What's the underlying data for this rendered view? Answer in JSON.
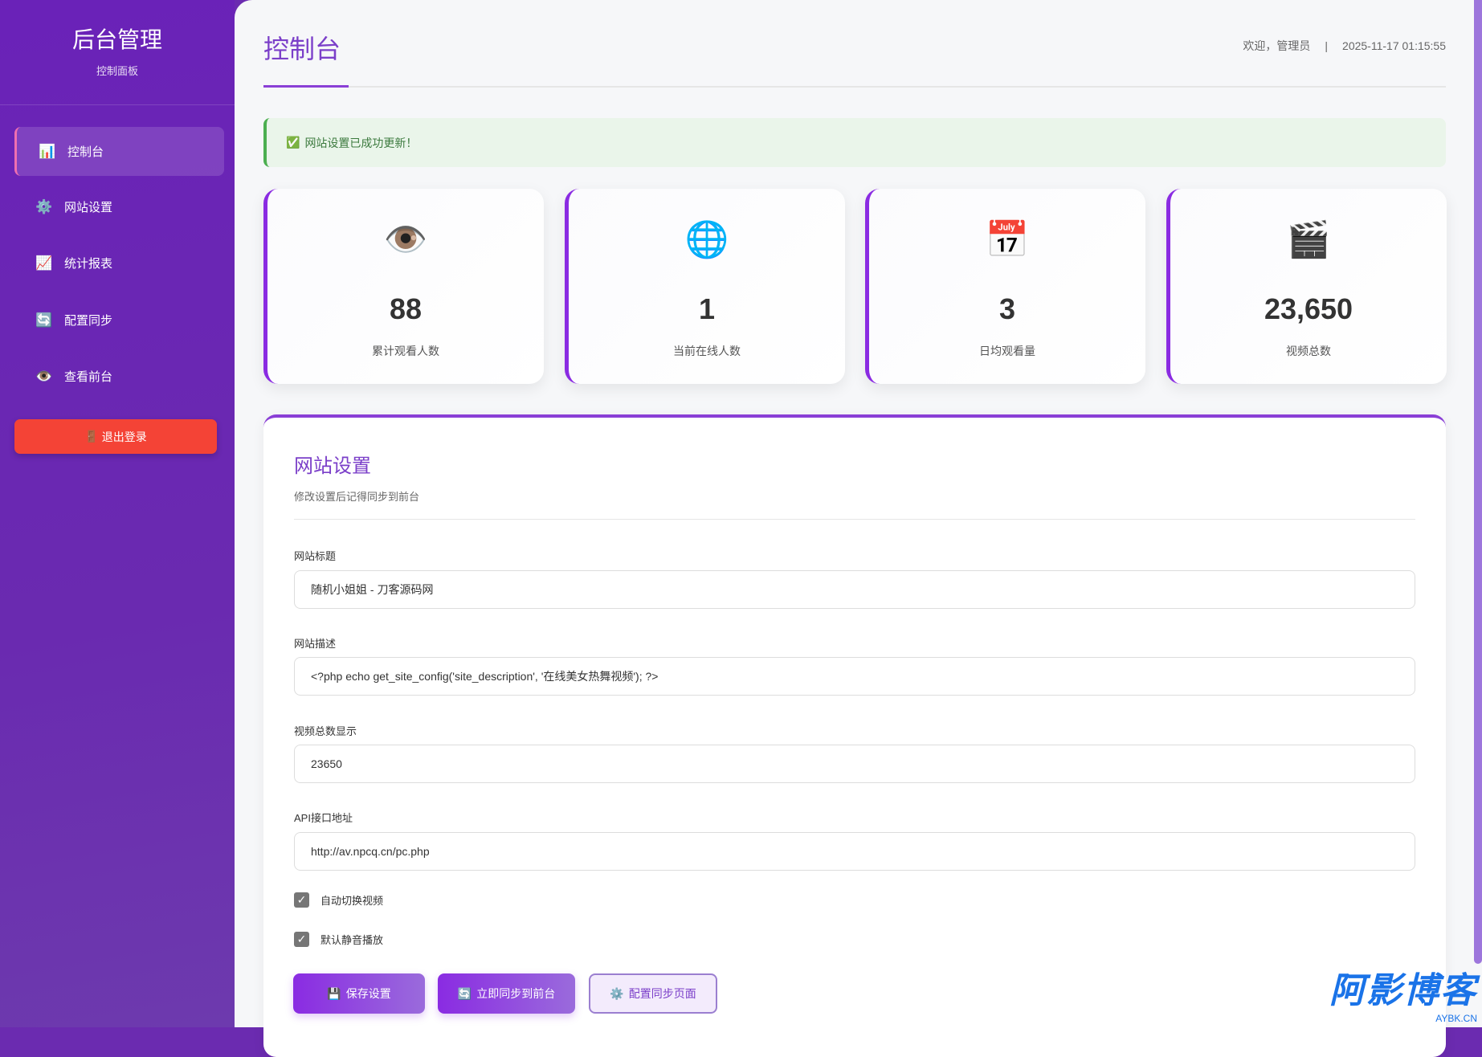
{
  "sidebar": {
    "title": "后台管理",
    "subtitle": "控制面板",
    "items": [
      {
        "icon": "📊",
        "label": "控制台"
      },
      {
        "icon": "⚙️",
        "label": "网站设置"
      },
      {
        "icon": "📈",
        "label": "统计报表"
      },
      {
        "icon": "🔄",
        "label": "配置同步"
      },
      {
        "icon": "👁️",
        "label": "查看前台"
      }
    ],
    "logout": {
      "icon": "🚪",
      "label": "退出登录"
    }
  },
  "header": {
    "title": "控制台",
    "welcome": "欢迎，管理员",
    "separator": "|",
    "datetime": "2025-11-17 01:15:55"
  },
  "alert": {
    "icon": "✅",
    "text": "网站设置已成功更新！"
  },
  "stats": [
    {
      "icon": "👁️",
      "value": "88",
      "label": "累计观看人数"
    },
    {
      "icon": "🌐",
      "value": "1",
      "label": "当前在线人数"
    },
    {
      "icon": "📅",
      "value": "3",
      "label": "日均观看量"
    },
    {
      "icon": "🎬",
      "value": "23,650",
      "label": "视频总数"
    }
  ],
  "settings": {
    "title": "网站设置",
    "subtitle": "修改设置后记得同步到前台",
    "fields": [
      {
        "label": "网站标题",
        "value": "随机小姐姐 - 刀客源码网"
      },
      {
        "label": "网站描述",
        "value": "<?php echo get_site_config('site_description', '在线美女热舞视频'); ?>"
      },
      {
        "label": "视频总数显示",
        "value": "23650"
      },
      {
        "label": "API接口地址",
        "value": "http://av.npcq.cn/pc.php"
      }
    ],
    "checkboxes": [
      {
        "label": "自动切换视频",
        "checked": true
      },
      {
        "label": "默认静音播放",
        "checked": true
      }
    ],
    "buttons": [
      {
        "icon": "💾",
        "label": "保存设置"
      },
      {
        "icon": "🔄",
        "label": "立即同步到前台"
      },
      {
        "icon": "⚙️",
        "label": "配置同步页面"
      }
    ]
  },
  "watermark": {
    "text": "阿影博客",
    "sub": "AYBK.CN"
  },
  "colors": {
    "accent": "#8a2be2",
    "sidebar": "#6a22b8",
    "danger": "#f44336",
    "success": "#4caf50"
  }
}
